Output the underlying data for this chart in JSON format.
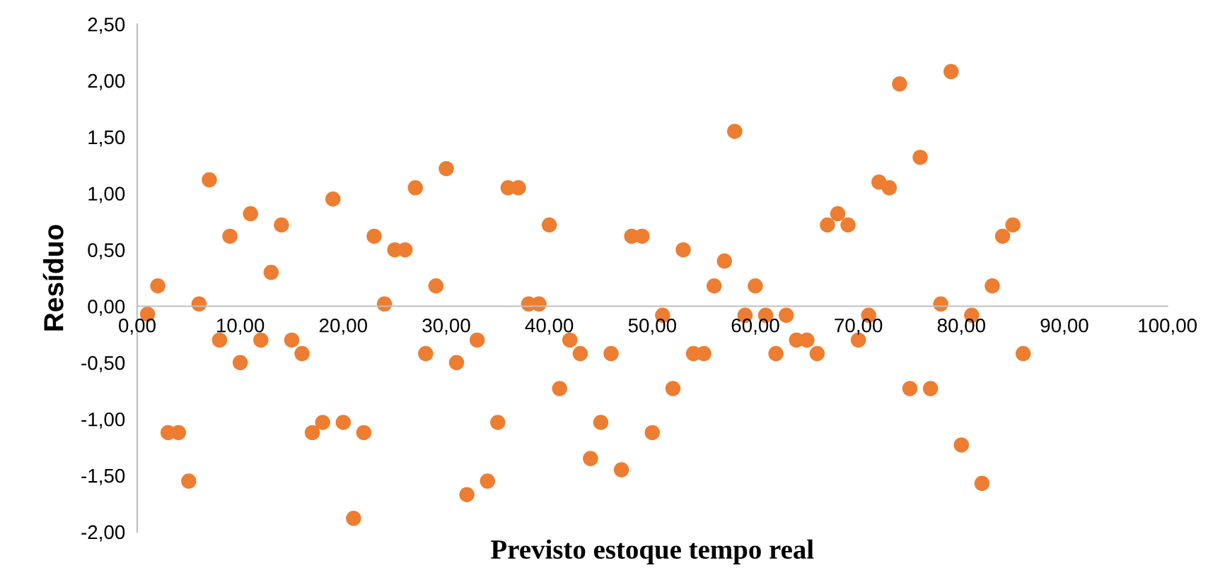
{
  "chart_data": {
    "type": "scatter",
    "xlabel": "Previsto estoque tempo real",
    "ylabel": "Resíduo",
    "xlim": [
      0,
      100
    ],
    "ylim": [
      -2,
      2.5
    ],
    "xticks": [
      {
        "value": 0,
        "label": "0,00"
      },
      {
        "value": 10,
        "label": "10,00"
      },
      {
        "value": 20,
        "label": "20,00"
      },
      {
        "value": 30,
        "label": "30,00"
      },
      {
        "value": 40,
        "label": "40,00"
      },
      {
        "value": 50,
        "label": "50,00"
      },
      {
        "value": 60,
        "label": "60,00"
      },
      {
        "value": 70,
        "label": "70,00"
      },
      {
        "value": 80,
        "label": "80,00"
      },
      {
        "value": 90,
        "label": "90,00"
      },
      {
        "value": 100,
        "label": "100,00"
      }
    ],
    "yticks": [
      {
        "value": -2,
        "label": "-2,00"
      },
      {
        "value": -1.5,
        "label": "-1,50"
      },
      {
        "value": -1,
        "label": "-1,00"
      },
      {
        "value": -0.5,
        "label": "-0,50"
      },
      {
        "value": 0,
        "label": "0,00"
      },
      {
        "value": 0.5,
        "label": "0,50"
      },
      {
        "value": 1,
        "label": "1,00"
      },
      {
        "value": 1.5,
        "label": "1,50"
      },
      {
        "value": 2,
        "label": "2,00"
      },
      {
        "value": 2.5,
        "label": "2,50"
      }
    ],
    "grid": false,
    "legend": false,
    "marker": "circle",
    "series": [
      {
        "color": "#ed7d31",
        "x": [
          1,
          2,
          3,
          4,
          5,
          6,
          7,
          8,
          9,
          10,
          11,
          12,
          13,
          14,
          15,
          16,
          17,
          18,
          19,
          20,
          21,
          22,
          23,
          24,
          25,
          26,
          27,
          28,
          29,
          30,
          31,
          32,
          33,
          34,
          35,
          36,
          37,
          38,
          39,
          40,
          41,
          42,
          43,
          44,
          45,
          46,
          47,
          48,
          49,
          50,
          51,
          52,
          53,
          54,
          55,
          56,
          57,
          58,
          59,
          60,
          61,
          62,
          63,
          64,
          65,
          66,
          67,
          68,
          69,
          70,
          71,
          72,
          73,
          74,
          75,
          76,
          77,
          78,
          79,
          80,
          81,
          82,
          83,
          84,
          85,
          86
        ],
        "values": [
          -0.07,
          0.18,
          -1.12,
          -1.12,
          -1.55,
          0.02,
          1.12,
          -0.3,
          0.62,
          -0.5,
          0.82,
          -0.3,
          0.3,
          0.72,
          -0.3,
          -0.42,
          -1.12,
          -1.03,
          0.95,
          -1.03,
          -1.88,
          -1.12,
          0.62,
          0.02,
          0.5,
          0.5,
          1.05,
          -0.42,
          0.18,
          1.22,
          -0.5,
          -1.67,
          -0.3,
          -1.55,
          -1.03,
          1.05,
          1.05,
          0.02,
          0.02,
          0.72,
          -0.73,
          -0.3,
          -0.42,
          -1.35,
          -1.03,
          -0.42,
          -1.45,
          0.62,
          0.62,
          -1.12,
          -0.08,
          -0.73,
          0.5,
          -0.42,
          -0.42,
          0.18,
          0.4,
          1.55,
          -0.08,
          0.18,
          -0.08,
          -0.42,
          -0.08,
          -0.3,
          -0.3,
          -0.42,
          0.72,
          0.82,
          0.72,
          -0.3,
          -0.08,
          1.1,
          1.05,
          1.97,
          -0.73,
          1.32,
          -0.73,
          0.02,
          2.08,
          -1.23,
          -0.08,
          -1.57,
          0.18,
          0.62,
          0.72,
          -0.42
        ]
      }
    ]
  }
}
